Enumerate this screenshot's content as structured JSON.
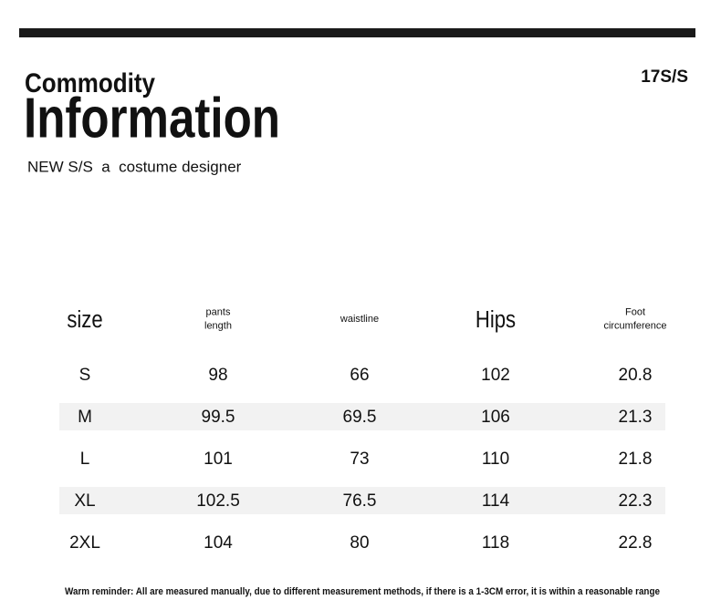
{
  "header": {
    "line1": "Commodity",
    "line2": "Information",
    "tagline": "NEW S/S  a  costume designer",
    "season": "17S/S"
  },
  "table": {
    "columns": [
      [
        "size"
      ],
      [
        "pants",
        "length"
      ],
      [
        "waistline"
      ],
      [
        "Hips"
      ],
      [
        "Foot",
        "circumference"
      ]
    ],
    "rows": [
      [
        "S",
        98,
        66,
        102,
        20.8
      ],
      [
        "M",
        99.5,
        69.5,
        106,
        21.3
      ],
      [
        "L",
        101,
        73,
        110,
        21.8
      ],
      [
        "XL",
        102.5,
        76.5,
        114,
        22.3
      ],
      [
        "2XL",
        104,
        80,
        118,
        22.8
      ]
    ]
  },
  "footer": {
    "note": "Warm reminder: All are measured manually, due to different measurement methods, if there is a 1-3CM error, it is within a reasonable range"
  }
}
